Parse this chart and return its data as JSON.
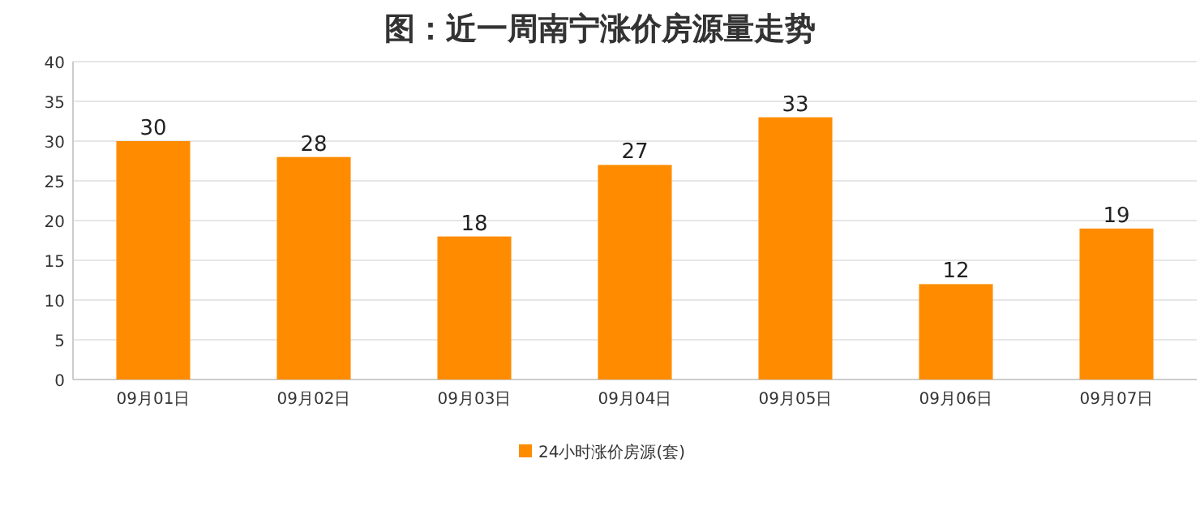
{
  "chart_data": {
    "type": "bar",
    "title": "图：近一周南宁涨价房源量走势",
    "categories": [
      "09月01日",
      "09月02日",
      "09月03日",
      "09月04日",
      "09月05日",
      "09月06日",
      "09月07日"
    ],
    "series": [
      {
        "name": "24小时涨价房源(套)",
        "color": "#ff8c00",
        "values": [
          30,
          28,
          18,
          27,
          33,
          12,
          19
        ]
      }
    ],
    "ylim": [
      0,
      40
    ],
    "yticks": [
      0,
      5,
      10,
      15,
      20,
      25,
      30,
      35,
      40
    ],
    "grid": "y",
    "legend": "bottom",
    "data_labels": true
  }
}
